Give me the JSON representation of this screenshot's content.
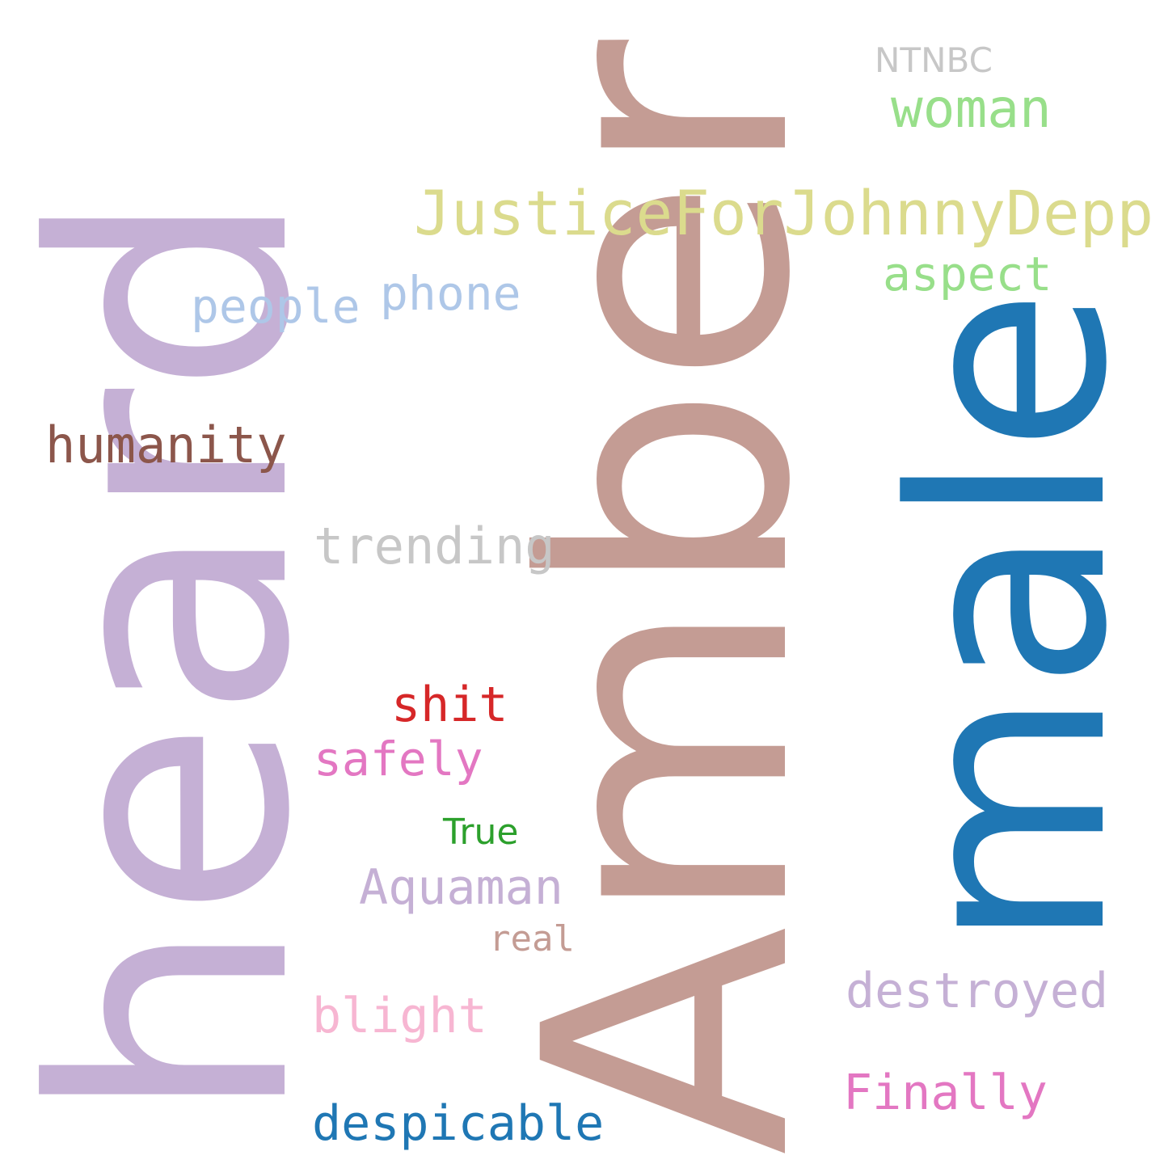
{
  "cloud": {
    "words": {
      "heard": {
        "text": "heard",
        "color": "#c5b0d5"
      },
      "amber": {
        "text": "Amber",
        "color": "#c49c94"
      },
      "male": {
        "text": "male",
        "color": "#1f77b4"
      },
      "justice": {
        "text": "JusticeForJohnnyDepp",
        "color": "#dbdb8d"
      },
      "woman": {
        "text": "woman",
        "color": "#98df8a"
      },
      "ntnbc": {
        "text": "NTNBC",
        "color": "#c7c7c7"
      },
      "aspect": {
        "text": "aspect",
        "color": "#98df8a"
      },
      "people": {
        "text": "people",
        "color": "#aec7e8"
      },
      "phone": {
        "text": "phone",
        "color": "#aec7e8"
      },
      "humanity": {
        "text": "humanity",
        "color": "#8c564b"
      },
      "trending": {
        "text": "trending",
        "color": "#c7c7c7"
      },
      "shit": {
        "text": "shit",
        "color": "#d62728"
      },
      "safely": {
        "text": "safely",
        "color": "#e377c2"
      },
      "true": {
        "text": "True",
        "color": "#2ca02c"
      },
      "aquaman": {
        "text": "Aquaman",
        "color": "#c5b0d5"
      },
      "real": {
        "text": "real",
        "color": "#c49c94"
      },
      "destroyed": {
        "text": "destroyed",
        "color": "#c5b0d5"
      },
      "blight": {
        "text": "blight",
        "color": "#f7b6d2"
      },
      "finally": {
        "text": "Finally",
        "color": "#e377c2"
      },
      "despicable": {
        "text": "despicable",
        "color": "#1f77b4"
      }
    }
  }
}
